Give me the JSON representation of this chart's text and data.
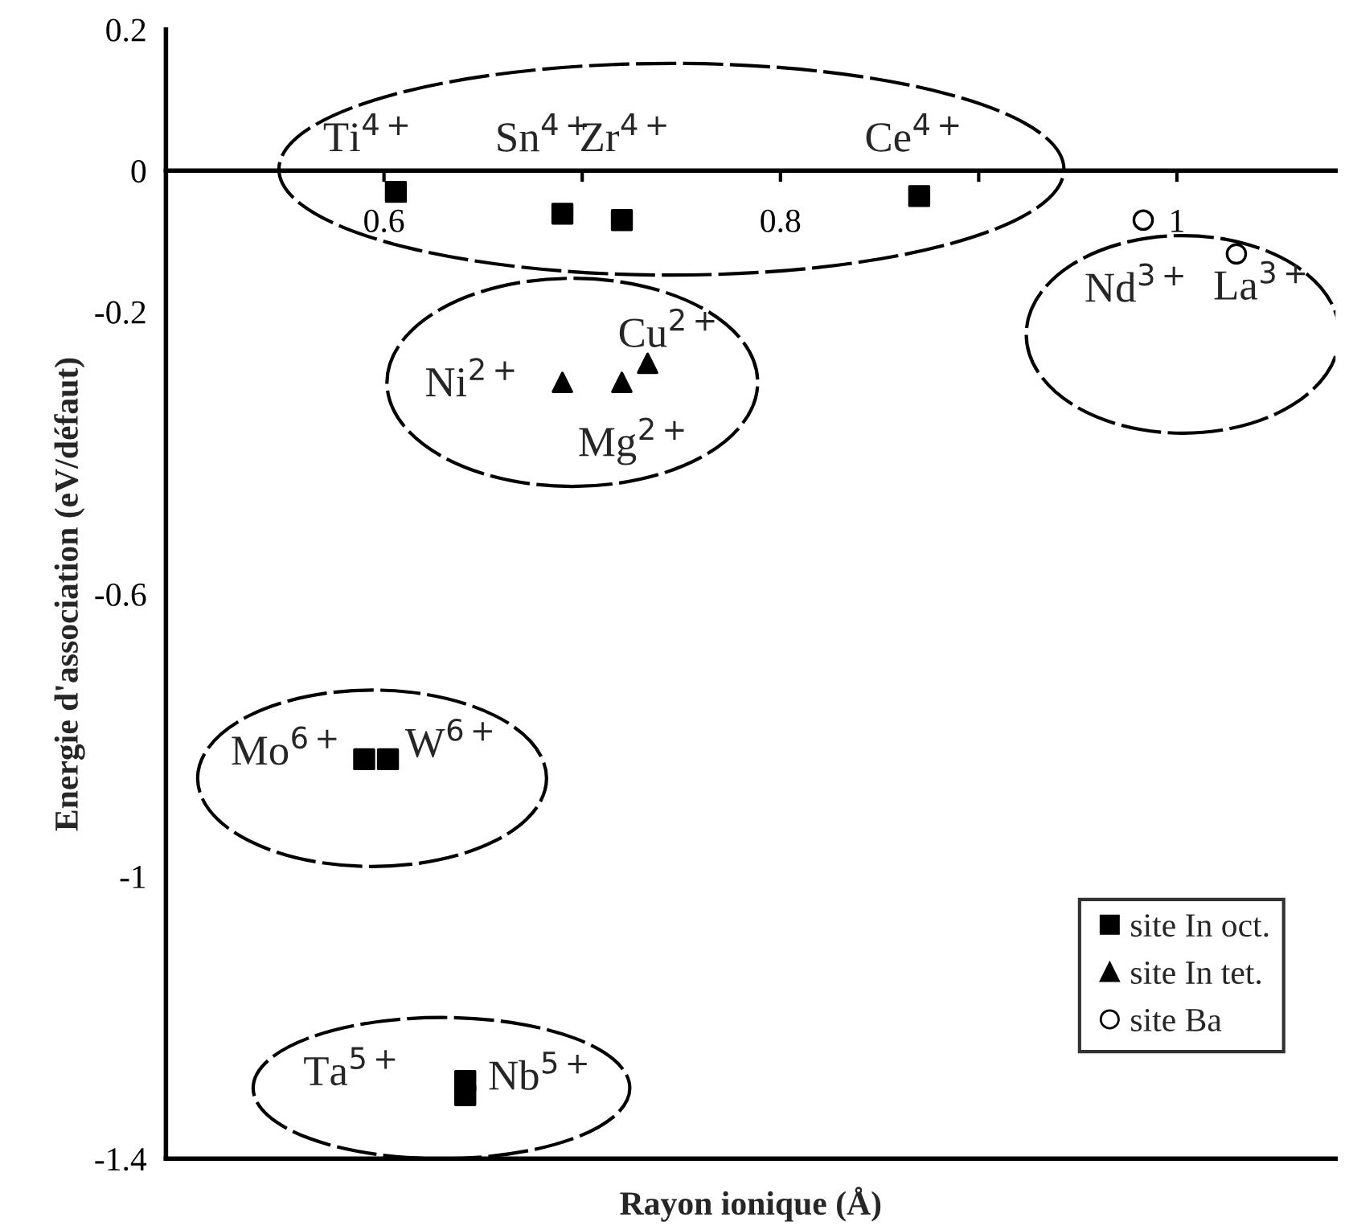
{
  "chart_data": {
    "type": "scatter",
    "xlabel": "Rayon ionique (Å)",
    "ylabel": "Energie d'association (eV/défaut)",
    "xlim": [
      0.49,
      1.08
    ],
    "xticks": [
      0.6,
      {
        "value": 0.7,
        "label": null
      },
      0.8,
      {
        "value": 0.9,
        "label": null
      },
      {
        "value": 1.0,
        "label": "1"
      }
    ],
    "ylim": [
      -1.4,
      0.2
    ],
    "yticks": [
      0.2,
      0,
      -0.2,
      -0.6,
      -1,
      -1.4
    ],
    "grid": false,
    "legend": "bottom right",
    "series": [
      {
        "name": "site In oct.",
        "color": "#000000",
        "marker": "square",
        "x": [
          0.606,
          0.69,
          0.72,
          0.87,
          0.59,
          0.602,
          0.641,
          0.641
        ],
        "values": [
          -0.03,
          -0.061,
          -0.07,
          -0.036,
          -0.834,
          -0.834,
          -1.29,
          -1.31
        ]
      },
      {
        "name": "site In tet.",
        "color": "#000000",
        "marker": "triangle",
        "x": [
          0.69,
          0.72,
          0.733
        ],
        "values": [
          -0.3,
          -0.3,
          -0.273
        ]
      },
      {
        "name": "site Ba",
        "color": "#000000",
        "marker": "circle",
        "x": [
          0.983,
          1.03
        ],
        "values": [
          -0.07,
          -0.118
        ]
      }
    ],
    "annotations": [
      "Ti$^{4+}$",
      "Sn$^{4+}$",
      "Zr$^{4+}$",
      "Ce$^{4+}$",
      "Nd$^{3+}$",
      "La$^{3+}$",
      "Ni$^{2+}$",
      "Cu$^{2+}$",
      "Mg$^{2+}$",
      "Mo$^{6+}$",
      "W$^{6+}$",
      "Ta$^{5+}$",
      "Nb$^{5+}$"
    ]
  }
}
